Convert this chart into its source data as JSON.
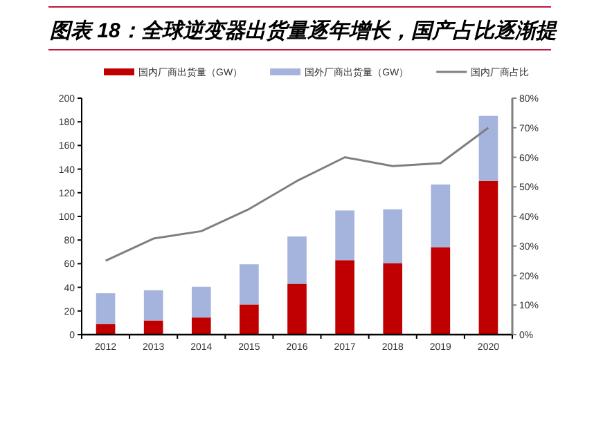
{
  "chart_data": {
    "type": "bar",
    "title": "图表 18：全球逆变器出货量逐年增长，国产占比逐渐提",
    "stacked": true,
    "legend": "top",
    "grid": false,
    "marker": "none",
    "line_style": "solid",
    "categories": [
      "2012",
      "2013",
      "2014",
      "2015",
      "2016",
      "2017",
      "2018",
      "2019",
      "2020"
    ],
    "series": [
      {
        "name": "国内厂商出货量（GW）",
        "color": "#c00000",
        "values": [
          9,
          12,
          14.5,
          25.5,
          43,
          63,
          60.5,
          74,
          130
        ]
      },
      {
        "name": "国外厂商出货量（GW）",
        "color": "#a4b4dc",
        "values": [
          26,
          25.5,
          26,
          34,
          40,
          42,
          45.5,
          53,
          55
        ]
      },
      {
        "name": "国内厂商占比",
        "type": "line",
        "axis": "y2",
        "color": "#7f7f7f",
        "values": [
          25,
          32.5,
          35,
          42.5,
          52,
          60,
          57,
          58,
          70
        ]
      }
    ],
    "ylim": [
      0,
      200
    ],
    "yticks": [
      0,
      20,
      40,
      60,
      80,
      100,
      120,
      140,
      160,
      180,
      200
    ],
    "y2lim": [
      0,
      80
    ],
    "y2ticks": [
      {
        "value": 0,
        "label": "0%"
      },
      {
        "value": 10,
        "label": "10%"
      },
      {
        "value": 20,
        "label": "20%"
      },
      {
        "value": 30,
        "label": "30%"
      },
      {
        "value": 40,
        "label": "40%"
      },
      {
        "value": 50,
        "label": "50%"
      },
      {
        "value": 60,
        "label": "60%"
      },
      {
        "value": 70,
        "label": "70%"
      },
      {
        "value": 80,
        "label": "80%"
      }
    ]
  }
}
